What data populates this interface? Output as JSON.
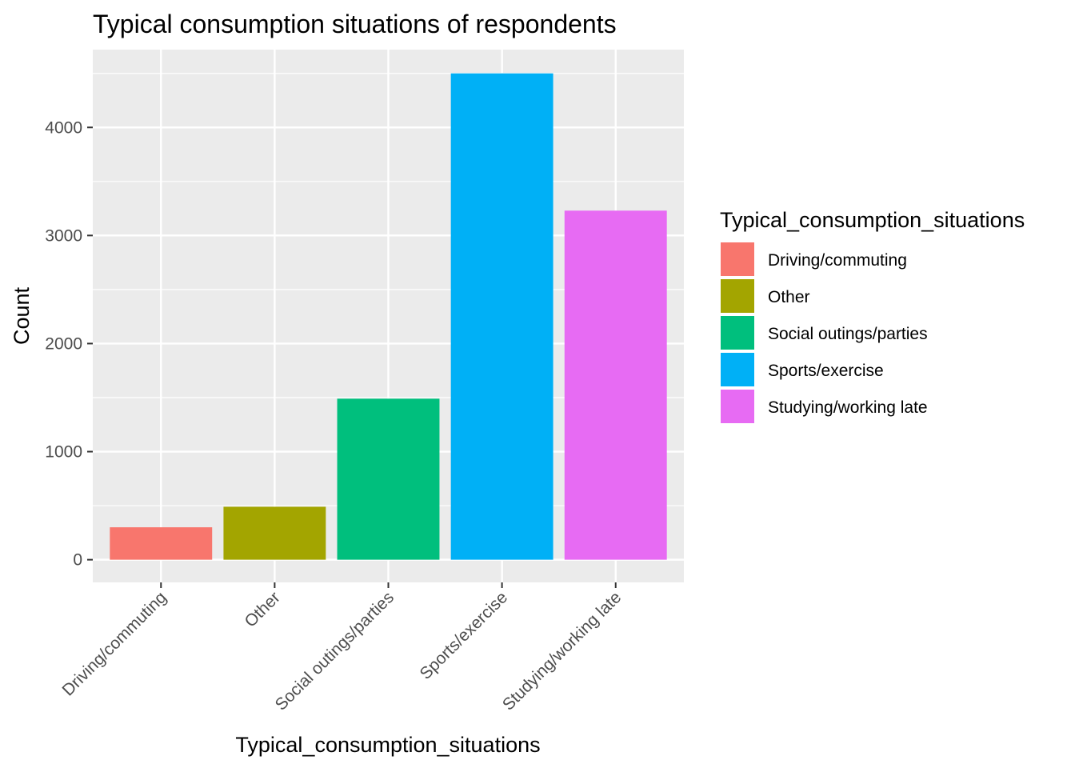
{
  "chart_data": {
    "type": "bar",
    "title": "Typical consumption situations of respondents",
    "xlabel": "Typical_consumption_situations",
    "ylabel": "Count",
    "categories": [
      "Driving/commuting",
      "Other",
      "Social outings/parties",
      "Sports/exercise",
      "Studying/working late"
    ],
    "values": [
      300,
      490,
      1490,
      4500,
      3230
    ],
    "colors": [
      "#F8766D",
      "#A3A500",
      "#00BF7D",
      "#00B0F6",
      "#E76BF3"
    ],
    "ylim": [
      -210,
      4720
    ],
    "yticks": [
      0,
      1000,
      2000,
      3000,
      4000
    ],
    "ytick_labels": [
      "0",
      "1000",
      "2000",
      "3000",
      "4000"
    ],
    "grid": true,
    "legend": {
      "title": "Typical_consumption_situations",
      "placement": "right",
      "entries": [
        "Driving/commuting",
        "Other",
        "Social outings/parties",
        "Sports/exercise",
        "Studying/working late"
      ]
    }
  }
}
